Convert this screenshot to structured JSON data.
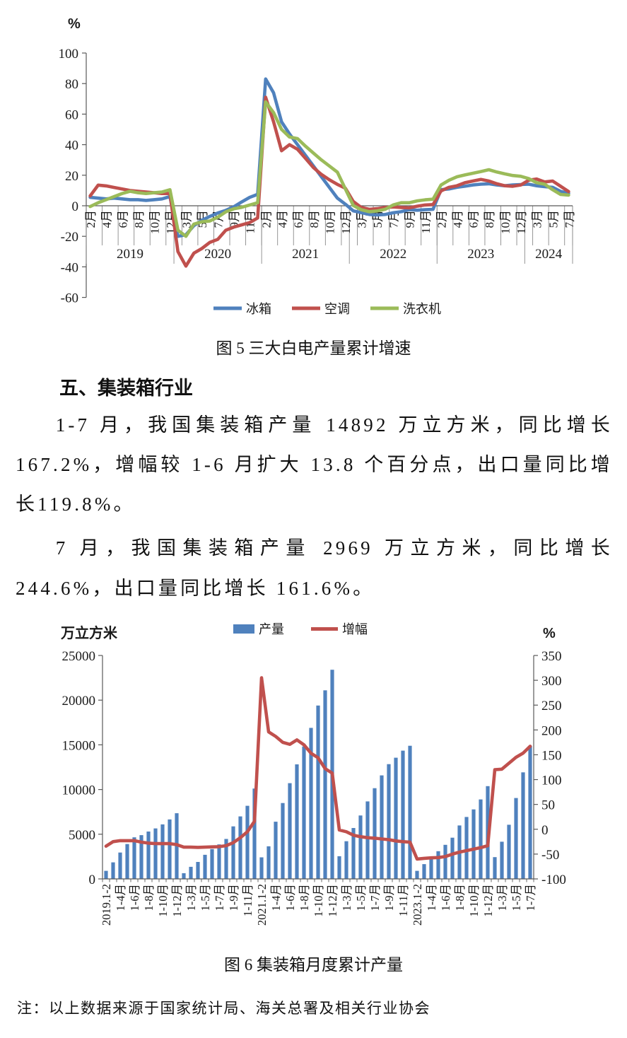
{
  "document": {
    "section_heading": "五、集装箱行业",
    "paragraph1": "1-7 月，我国集装箱产量 14892 万立方米，同比增长167.2%，增幅较 1-6 月扩大 13.8 个百分点，出口量同比增长119.8%。",
    "paragraph2": "7 月，我国集装箱产量 2969 万立方米，同比增长 244.6%，出口量同比增长 161.6%。",
    "note": "注：以上数据来源于国家统计局、海关总署及相关行业协会"
  },
  "chart_data": [
    {
      "type": "line",
      "title": "图 5 三大白电产量累计增速",
      "unit": "%",
      "ylim": [
        -60,
        100
      ],
      "ytick_step": 20,
      "grid": false,
      "legend_position": "bottom",
      "x_tick_labels": [
        "2月",
        "4月",
        "6月",
        "8月",
        "10月",
        "12月",
        "3月",
        "5月",
        "7月",
        "9月",
        "11月",
        "2月",
        "4月",
        "6月",
        "8月",
        "10月",
        "12月",
        "3月",
        "5月",
        "7月",
        "9月",
        "11月",
        "2月",
        "4月",
        "6月",
        "8月",
        "10月",
        "12月",
        "3月",
        "5月",
        "7月"
      ],
      "year_groups": [
        {
          "label": "2019",
          "points": 11
        },
        {
          "label": "2020",
          "points": 11
        },
        {
          "label": "2021",
          "points": 11
        },
        {
          "label": "2022",
          "points": 11
        },
        {
          "label": "2023",
          "points": 11
        },
        {
          "label": "2024",
          "points": 6
        }
      ],
      "series": [
        {
          "name": "冰箱",
          "color": "#4F81BD",
          "values": [
            5.5,
            5,
            4.5,
            5,
            4.5,
            4,
            4,
            3.5,
            4,
            4.5,
            6,
            -20,
            -19,
            -13,
            -9.5,
            -7,
            -4.7,
            -3,
            -0.7,
            2.5,
            5.5,
            7.5,
            83,
            74,
            55,
            47,
            40,
            33,
            26,
            19,
            12,
            5,
            1,
            -3.4,
            -4.5,
            -5.7,
            -6,
            -5.7,
            -4.6,
            -3.9,
            -2.6,
            -2.9,
            -2.6,
            -2.3,
            10.5,
            11,
            12.1,
            12.8,
            13.6,
            14.1,
            14.4,
            13.6,
            13.1,
            13.6,
            13.9,
            14.1,
            13.1,
            12.5,
            12.1,
            9.4,
            8.2
          ]
        },
        {
          "name": "空调",
          "color": "#C0504D",
          "values": [
            6.5,
            13.5,
            13,
            12,
            11,
            10,
            9.5,
            9,
            8.5,
            8,
            8,
            -30,
            -39.5,
            -31,
            -28,
            -24,
            -22,
            -16,
            -14,
            -12.5,
            -11,
            -8,
            71,
            55,
            36,
            40,
            37,
            31,
            25,
            20.5,
            17,
            14,
            11.5,
            2.8,
            -1.1,
            -2.3,
            -1.9,
            -1.1,
            -0.8,
            -1.1,
            -1.4,
            -0.3,
            0.5,
            0.8,
            9.7,
            12.1,
            13.1,
            15.1,
            16.2,
            17.2,
            16.2,
            14.4,
            13.1,
            12.8,
            13.6,
            16.7,
            17.5,
            15.6,
            16.2,
            12.8,
            9.3
          ]
        },
        {
          "name": "洗衣机",
          "color": "#9BBB59",
          "values": [
            -0.5,
            2,
            4,
            6,
            8,
            9.5,
            8.5,
            8,
            8.5,
            9,
            10.5,
            -16,
            -20,
            -12,
            -10.5,
            -10,
            -7.5,
            -4,
            -2,
            -1,
            0.5,
            2,
            68,
            61,
            50,
            45,
            44,
            39,
            34.5,
            30,
            26,
            22,
            11,
            0.2,
            -2.6,
            -3.9,
            -3.4,
            -2.3,
            0.5,
            2,
            2,
            3.2,
            3.9,
            4.3,
            13.6,
            16.7,
            19,
            20.2,
            21.3,
            22.4,
            23.6,
            22.1,
            20.9,
            19.8,
            19.3,
            17.8,
            15.1,
            14.1,
            10.5,
            7.4,
            7
          ]
        }
      ]
    },
    {
      "type": "bar+line",
      "title": "图 6 集装箱月度累计产量",
      "left_unit": "万立方米",
      "right_unit": "%",
      "left_ylim": [
        0,
        25000
      ],
      "left_step": 5000,
      "right_ylim": [
        -100,
        350
      ],
      "right_step": 50,
      "grid": false,
      "legend_position": "top",
      "x_tick_labels": [
        "2019.1-2",
        "1-4月",
        "1-6月",
        "1-8月",
        "1-10月",
        "1-12月",
        "1-3月",
        "1-5月",
        "1-7月",
        "1-9月",
        "1-11月",
        "2021.1-2",
        "1-4月",
        "1-6月",
        "1-8月",
        "1-10月",
        "1-12月",
        "1-3月",
        "1-5月",
        "1-7月",
        "1-9月",
        "1-11月",
        "2023.1-2",
        "1-4月",
        "1-6月",
        "1-8月",
        "1-10月",
        "1-12月",
        "1-3月",
        "1-5月",
        "1-7月"
      ],
      "series": [
        {
          "name": "产量",
          "type": "bar",
          "axis": "left",
          "color": "#4F81BD",
          "values": [
            900,
            1850,
            2950,
            3900,
            4650,
            4900,
            5300,
            5650,
            6100,
            6650,
            7350,
            640,
            1350,
            1900,
            2700,
            3340,
            3860,
            4470,
            5880,
            6990,
            8180,
            10110,
            2410,
            3650,
            6400,
            8490,
            10710,
            12820,
            14820,
            16900,
            19400,
            21100,
            23400,
            2540,
            4220,
            5700,
            7100,
            8670,
            10150,
            11580,
            12840,
            13560,
            14350,
            14900,
            900,
            1650,
            2400,
            3100,
            3810,
            4610,
            5980,
            6930,
            7780,
            8890,
            10380,
            2440,
            4160,
            6060,
            9050,
            11923,
            14892
          ]
        },
        {
          "name": "增幅",
          "type": "line",
          "axis": "right",
          "color": "#C0504D",
          "values": [
            -34,
            -25,
            -23,
            -23,
            -23,
            -26,
            -28,
            -29,
            -29,
            -29,
            -31,
            -36,
            -36,
            -36.5,
            -36,
            -35.5,
            -35,
            -33,
            -27,
            -17,
            -5,
            16,
            305,
            196,
            187,
            175,
            171,
            180,
            170,
            153,
            144,
            122,
            113,
            -1.5,
            -5,
            -12,
            -15,
            -17,
            -18,
            -19.5,
            -21,
            -23.5,
            -25,
            -26,
            -60,
            -58.5,
            -57.5,
            -57,
            -55,
            -50,
            -46,
            -43,
            -40,
            -37,
            -33,
            120,
            121,
            133,
            145,
            153.4,
            167.2
          ]
        }
      ]
    }
  ]
}
